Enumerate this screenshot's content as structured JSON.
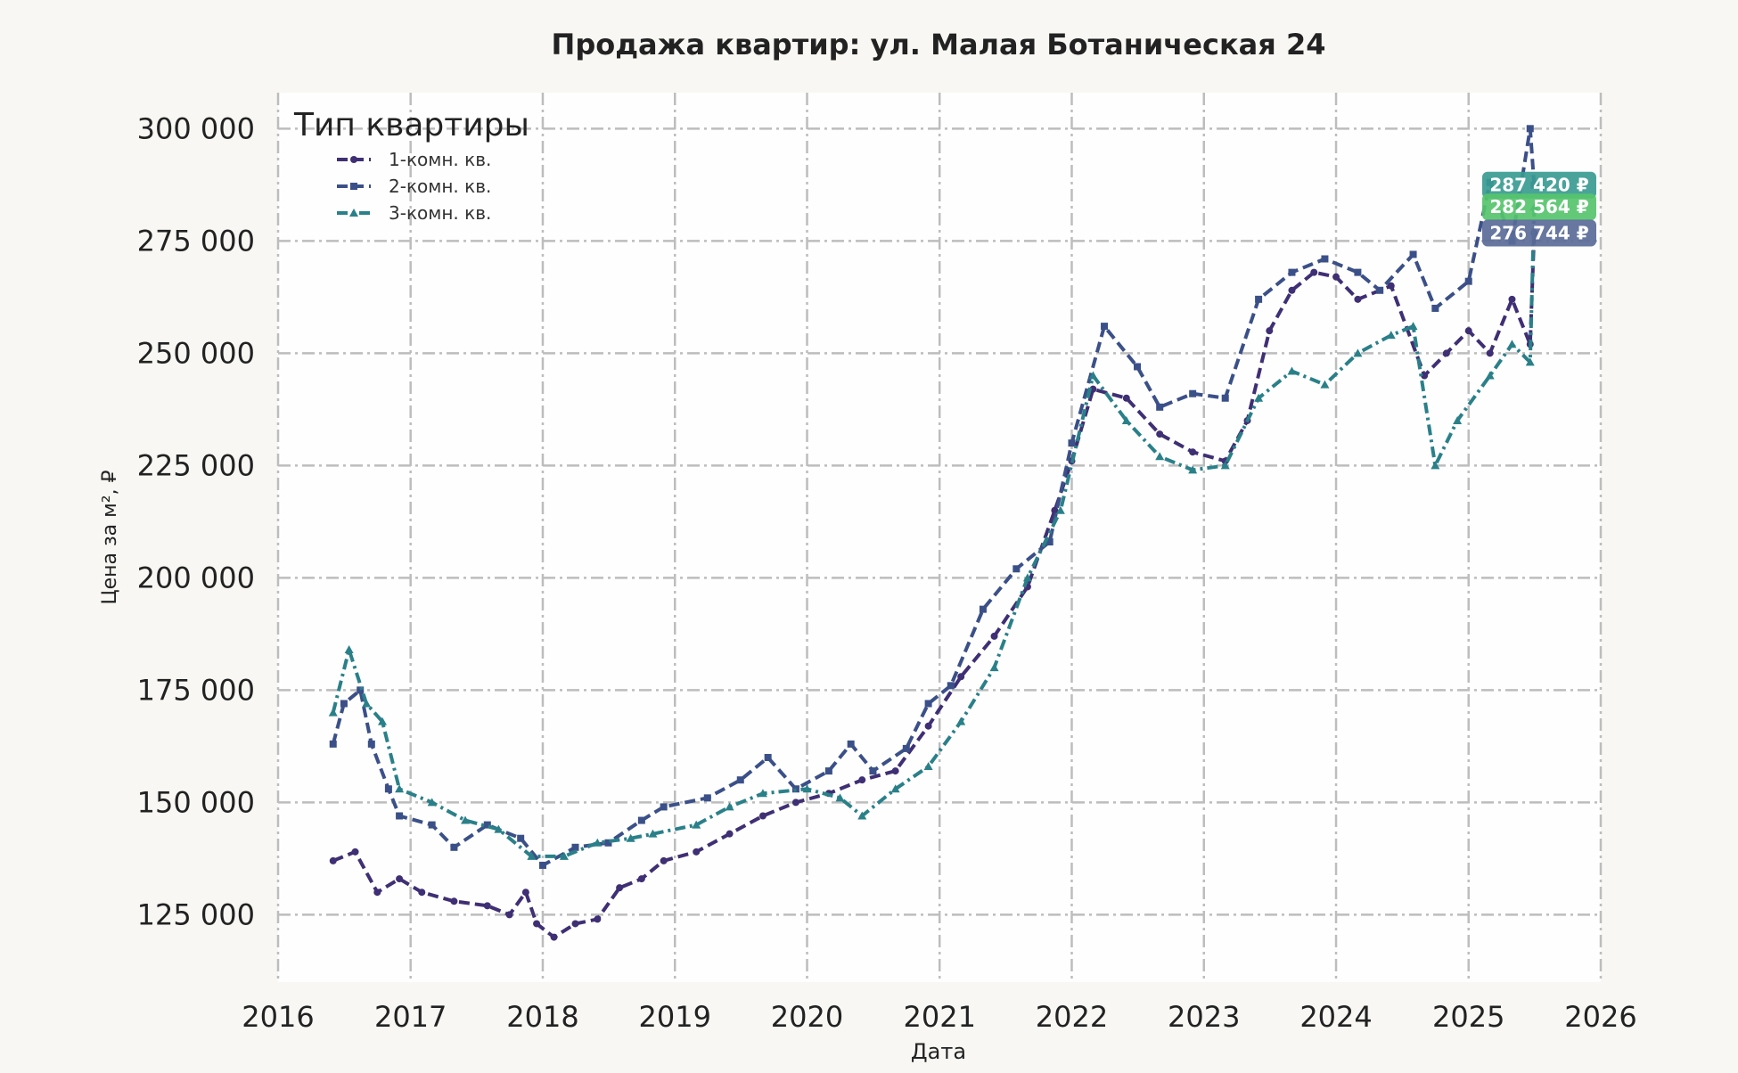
{
  "chart_data": {
    "type": "line",
    "title": "Продажа квартир: ул. Малая Ботаническая 24",
    "xlabel": "Дата",
    "ylabel": "Цена за м², ₽",
    "xlim": [
      "2016-01-01",
      "2026-01-01"
    ],
    "ylim": [
      110000,
      308000
    ],
    "x_ticks": [
      "2016",
      "2017",
      "2018",
      "2019",
      "2020",
      "2021",
      "2022",
      "2023",
      "2024",
      "2025",
      "2026"
    ],
    "y_ticks": [
      125000,
      150000,
      175000,
      200000,
      225000,
      250000,
      275000,
      300000
    ],
    "y_tick_labels": [
      "125 000",
      "150 000",
      "175 000",
      "200 000",
      "225 000",
      "250 000",
      "275 000",
      "300 000"
    ],
    "grid": true,
    "legend": {
      "title": "Тип квартиры",
      "placement": "top-left"
    },
    "series": [
      {
        "name": "1-комн. кв.",
        "color": "#3f2f74",
        "dash": "dashed",
        "marker": "circle",
        "points": [
          [
            "2016-06-01",
            137000
          ],
          [
            "2016-08-01",
            139000
          ],
          [
            "2016-10-01",
            130000
          ],
          [
            "2016-12-01",
            133000
          ],
          [
            "2017-02-01",
            130000
          ],
          [
            "2017-05-01",
            128000
          ],
          [
            "2017-08-01",
            127000
          ],
          [
            "2017-10-01",
            125000
          ],
          [
            "2017-11-15",
            130000
          ],
          [
            "2017-12-15",
            123000
          ],
          [
            "2018-02-01",
            120000
          ],
          [
            "2018-04-01",
            123000
          ],
          [
            "2018-06-01",
            124000
          ],
          [
            "2018-08-01",
            131000
          ],
          [
            "2018-10-01",
            133000
          ],
          [
            "2018-12-01",
            137000
          ],
          [
            "2019-03-01",
            139000
          ],
          [
            "2019-06-01",
            143000
          ],
          [
            "2019-09-01",
            147000
          ],
          [
            "2019-12-01",
            150000
          ],
          [
            "2020-03-01",
            152000
          ],
          [
            "2020-06-01",
            155000
          ],
          [
            "2020-09-01",
            157000
          ],
          [
            "2020-12-01",
            167000
          ],
          [
            "2021-03-01",
            178000
          ],
          [
            "2021-06-01",
            187000
          ],
          [
            "2021-09-01",
            198000
          ],
          [
            "2021-11-15",
            215000
          ],
          [
            "2022-01-01",
            226000
          ],
          [
            "2022-03-01",
            242000
          ],
          [
            "2022-06-01",
            240000
          ],
          [
            "2022-09-01",
            232000
          ],
          [
            "2022-12-01",
            228000
          ],
          [
            "2023-03-01",
            226000
          ],
          [
            "2023-05-01",
            235000
          ],
          [
            "2023-07-01",
            255000
          ],
          [
            "2023-09-01",
            264000
          ],
          [
            "2023-11-01",
            268000
          ],
          [
            "2024-01-01",
            267000
          ],
          [
            "2024-03-01",
            262000
          ],
          [
            "2024-06-01",
            265000
          ],
          [
            "2024-09-01",
            245000
          ],
          [
            "2024-11-01",
            250000
          ],
          [
            "2025-01-01",
            255000
          ],
          [
            "2025-03-01",
            250000
          ],
          [
            "2025-05-01",
            262000
          ],
          [
            "2025-06-20",
            252000
          ],
          [
            "2025-07-01",
            276744
          ]
        ]
      },
      {
        "name": "2-комн. кв.",
        "color": "#3b5088",
        "dash": "dashed",
        "marker": "square",
        "points": [
          [
            "2016-06-01",
            163000
          ],
          [
            "2016-07-01",
            172000
          ],
          [
            "2016-08-15",
            175000
          ],
          [
            "2016-09-15",
            163000
          ],
          [
            "2016-11-01",
            153000
          ],
          [
            "2016-12-01",
            147000
          ],
          [
            "2017-03-01",
            145000
          ],
          [
            "2017-05-01",
            140000
          ],
          [
            "2017-08-01",
            145000
          ],
          [
            "2017-11-01",
            142000
          ],
          [
            "2018-01-01",
            136000
          ],
          [
            "2018-04-01",
            140000
          ],
          [
            "2018-07-01",
            141000
          ],
          [
            "2018-10-01",
            146000
          ],
          [
            "2018-12-01",
            149000
          ],
          [
            "2019-04-01",
            151000
          ],
          [
            "2019-07-01",
            155000
          ],
          [
            "2019-09-15",
            160000
          ],
          [
            "2019-12-01",
            153000
          ],
          [
            "2020-03-01",
            157000
          ],
          [
            "2020-05-01",
            163000
          ],
          [
            "2020-07-01",
            157000
          ],
          [
            "2020-10-01",
            162000
          ],
          [
            "2020-12-01",
            172000
          ],
          [
            "2021-02-01",
            176000
          ],
          [
            "2021-05-01",
            193000
          ],
          [
            "2021-08-01",
            202000
          ],
          [
            "2021-11-01",
            208000
          ],
          [
            "2022-01-01",
            230000
          ],
          [
            "2022-04-01",
            256000
          ],
          [
            "2022-07-01",
            247000
          ],
          [
            "2022-09-01",
            238000
          ],
          [
            "2022-12-01",
            241000
          ],
          [
            "2023-03-01",
            240000
          ],
          [
            "2023-06-01",
            262000
          ],
          [
            "2023-09-01",
            268000
          ],
          [
            "2023-12-01",
            271000
          ],
          [
            "2024-03-01",
            268000
          ],
          [
            "2024-05-01",
            264000
          ],
          [
            "2024-08-01",
            272000
          ],
          [
            "2024-10-01",
            260000
          ],
          [
            "2025-01-01",
            266000
          ],
          [
            "2025-03-01",
            288000
          ],
          [
            "2025-05-01",
            275000
          ],
          [
            "2025-06-20",
            300000
          ],
          [
            "2025-07-01",
            287420
          ]
        ]
      },
      {
        "name": "3-комн. кв.",
        "color": "#2a8089",
        "dash": "dashdot",
        "marker": "triangle",
        "points": [
          [
            "2016-06-01",
            170000
          ],
          [
            "2016-07-15",
            184000
          ],
          [
            "2016-09-01",
            172000
          ],
          [
            "2016-10-15",
            168000
          ],
          [
            "2016-12-01",
            153000
          ],
          [
            "2017-03-01",
            150000
          ],
          [
            "2017-06-01",
            146000
          ],
          [
            "2017-09-01",
            144000
          ],
          [
            "2017-12-01",
            138000
          ],
          [
            "2018-03-01",
            138000
          ],
          [
            "2018-06-01",
            141000
          ],
          [
            "2018-09-01",
            142000
          ],
          [
            "2018-11-01",
            143000
          ],
          [
            "2019-03-01",
            145000
          ],
          [
            "2019-06-01",
            149000
          ],
          [
            "2019-09-01",
            152000
          ],
          [
            "2020-01-01",
            153000
          ],
          [
            "2020-04-01",
            151000
          ],
          [
            "2020-06-01",
            147000
          ],
          [
            "2020-09-01",
            153000
          ],
          [
            "2020-12-01",
            158000
          ],
          [
            "2021-03-01",
            168000
          ],
          [
            "2021-06-01",
            180000
          ],
          [
            "2021-09-01",
            200000
          ],
          [
            "2021-12-01",
            215000
          ],
          [
            "2022-03-01",
            245000
          ],
          [
            "2022-06-01",
            235000
          ],
          [
            "2022-09-01",
            227000
          ],
          [
            "2022-12-01",
            224000
          ],
          [
            "2023-03-01",
            225000
          ],
          [
            "2023-06-01",
            240000
          ],
          [
            "2023-09-01",
            246000
          ],
          [
            "2023-12-01",
            243000
          ],
          [
            "2024-03-01",
            250000
          ],
          [
            "2024-06-01",
            254000
          ],
          [
            "2024-08-01",
            256000
          ],
          [
            "2024-10-01",
            225000
          ],
          [
            "2024-12-01",
            235000
          ],
          [
            "2025-03-01",
            245000
          ],
          [
            "2025-05-01",
            252000
          ],
          [
            "2025-06-20",
            248000
          ],
          [
            "2025-07-01",
            282564
          ]
        ]
      }
    ],
    "end_labels": [
      {
        "series": "2-комн. кв.",
        "text": "287 420 ₽",
        "value": 287420,
        "color": "#3a9b92"
      },
      {
        "series": "3-комн. кв.",
        "text": "282 564 ₽",
        "value": 282564,
        "color": "#56c46c"
      },
      {
        "series": "1-комн. кв.",
        "text": "276 744 ₽",
        "value": 276744,
        "color": "#5a6b98"
      }
    ]
  }
}
